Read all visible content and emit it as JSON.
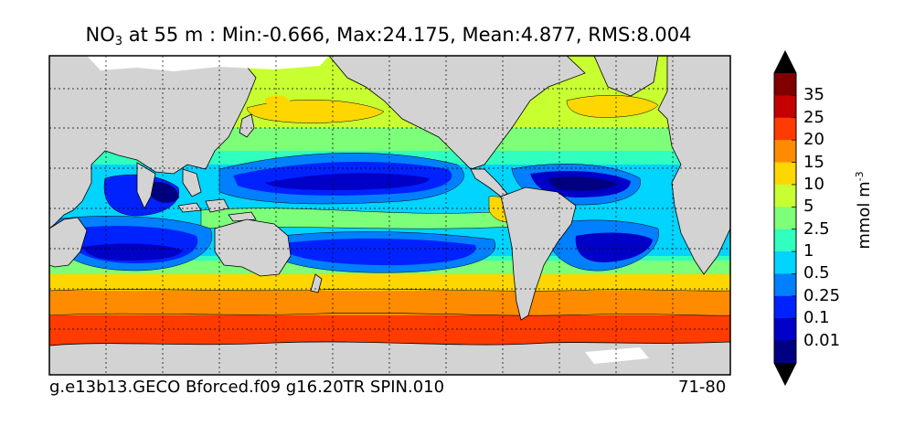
{
  "title": {
    "species": "NO",
    "subscript": "3",
    "rest": " at 55 m : Min:-0.666, Max:24.175, Mean:4.877, RMS:8.004"
  },
  "footer": {
    "run_name": "g.e13b13.GECO Bforced.f09 g16.20TR SPIN.010",
    "period": "71-80"
  },
  "colorbar": {
    "unit_main": "mmol m",
    "unit_exp": "-3",
    "tick_labels": [
      "35",
      "25",
      "20",
      "15",
      "10",
      "5",
      "2.5",
      "1",
      "0.5",
      "0.25",
      "0.1",
      "0.01"
    ],
    "colors_top_to_bottom": [
      "#800000",
      "#c40000",
      "#ff3b00",
      "#ff8c00",
      "#ffd700",
      "#c8ff30",
      "#7dff7a",
      "#30ffc0",
      "#00d4ff",
      "#0080ff",
      "#0022ff",
      "#0000c8",
      "#000080"
    ]
  },
  "map_colors": {
    "land": "#d3d3d3",
    "ice": "#ffffff",
    "contour": "#000000"
  }
}
